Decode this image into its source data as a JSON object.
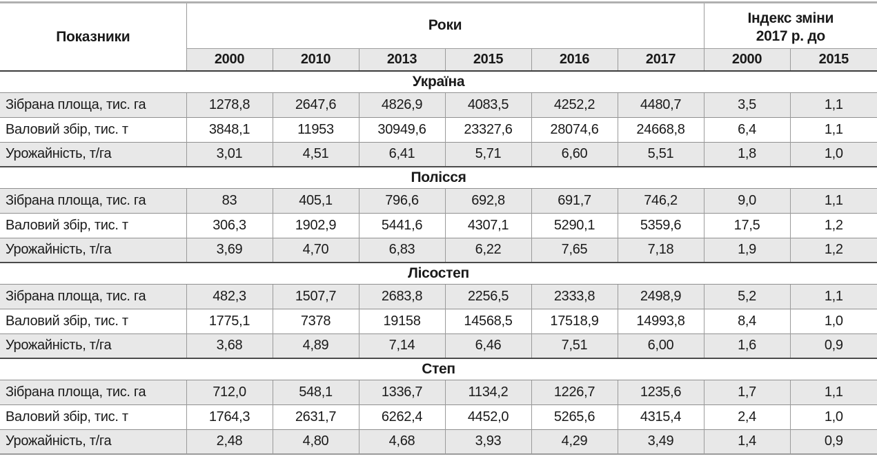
{
  "colors": {
    "shaded_row_bg": "#e8e8e8",
    "grid_line": "#9a9a9a",
    "heavy_rule": "#3c3c3c",
    "text": "#1a1a1a"
  },
  "table": {
    "col_header_left": "Показники",
    "years_group_header": "Роки",
    "index_group_header_lines": [
      "Індекс зміни",
      "2017 р. до"
    ],
    "year_labels": [
      "2000",
      "2010",
      "2013",
      "2015",
      "2016",
      "2017"
    ],
    "index_compare_labels": [
      "2000",
      "2015"
    ],
    "row_labels": [
      "Зібрана площа, тис. га",
      "Валовий збір, тис. т",
      "Урожайність, т/га"
    ],
    "sections": [
      {
        "title": "Україна",
        "rows": [
          [
            "1278,8",
            "2647,6",
            "4826,9",
            "4083,5",
            "4252,2",
            "4480,7",
            "3,5",
            "1,1"
          ],
          [
            "3848,1",
            "11953",
            "30949,6",
            "23327,6",
            "28074,6",
            "24668,8",
            "6,4",
            "1,1"
          ],
          [
            "3,01",
            "4,51",
            "6,41",
            "5,71",
            "6,60",
            "5,51",
            "1,8",
            "1,0"
          ]
        ]
      },
      {
        "title": "Полісся",
        "rows": [
          [
            "83",
            "405,1",
            "796,6",
            "692,8",
            "691,7",
            "746,2",
            "9,0",
            "1,1"
          ],
          [
            "306,3",
            "1902,9",
            "5441,6",
            "4307,1",
            "5290,1",
            "5359,6",
            "17,5",
            "1,2"
          ],
          [
            "3,69",
            "4,70",
            "6,83",
            "6,22",
            "7,65",
            "7,18",
            "1,9",
            "1,2"
          ]
        ]
      },
      {
        "title": "Лісостеп",
        "rows": [
          [
            "482,3",
            "1507,7",
            "2683,8",
            "2256,5",
            "2333,8",
            "2498,9",
            "5,2",
            "1,1"
          ],
          [
            "1775,1",
            "7378",
            "19158",
            "14568,5",
            "17518,9",
            "14993,8",
            "8,4",
            "1,0"
          ],
          [
            "3,68",
            "4,89",
            "7,14",
            "6,46",
            "7,51",
            "6,00",
            "1,6",
            "0,9"
          ]
        ]
      },
      {
        "title": "Степ",
        "rows": [
          [
            "712,0",
            "548,1",
            "1336,7",
            "1134,2",
            "1226,7",
            "1235,6",
            "1,7",
            "1,1"
          ],
          [
            "1764,3",
            "2631,7",
            "6262,4",
            "4452,0",
            "5265,6",
            "4315,4",
            "2,4",
            "1,0"
          ],
          [
            "2,48",
            "4,80",
            "4,68",
            "3,93",
            "4,29",
            "3,49",
            "1,4",
            "0,9"
          ]
        ]
      }
    ]
  }
}
